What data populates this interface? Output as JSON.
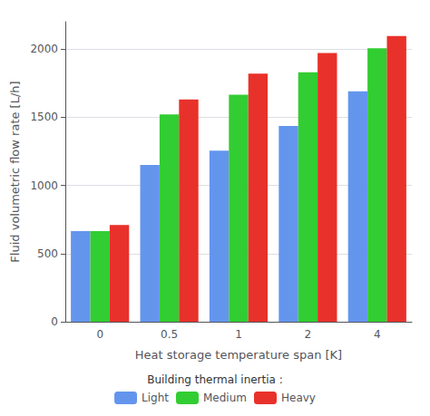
{
  "chart_data": {
    "type": "bar",
    "xlabel": "Heat storage temperature span [K]",
    "ylabel": "Fluid volumetric flow rate [L/h]",
    "legend_title": "Building thermal inertia :",
    "categories": [
      "0",
      "0.5",
      "1",
      "2",
      "4"
    ],
    "series": [
      {
        "name": "Light",
        "color": "#6495ed",
        "values": [
          665,
          1150,
          1255,
          1435,
          1690
        ]
      },
      {
        "name": "Medium",
        "color": "#32cd32",
        "values": [
          665,
          1520,
          1665,
          1830,
          2005
        ]
      },
      {
        "name": "Heavy",
        "color": "#e8312a",
        "values": [
          710,
          1630,
          1820,
          1970,
          2095
        ]
      }
    ],
    "ylim": [
      0,
      2200
    ],
    "yticks": [
      0,
      500,
      1000,
      1500,
      2000
    ],
    "grid": true,
    "legend": "bottom"
  }
}
